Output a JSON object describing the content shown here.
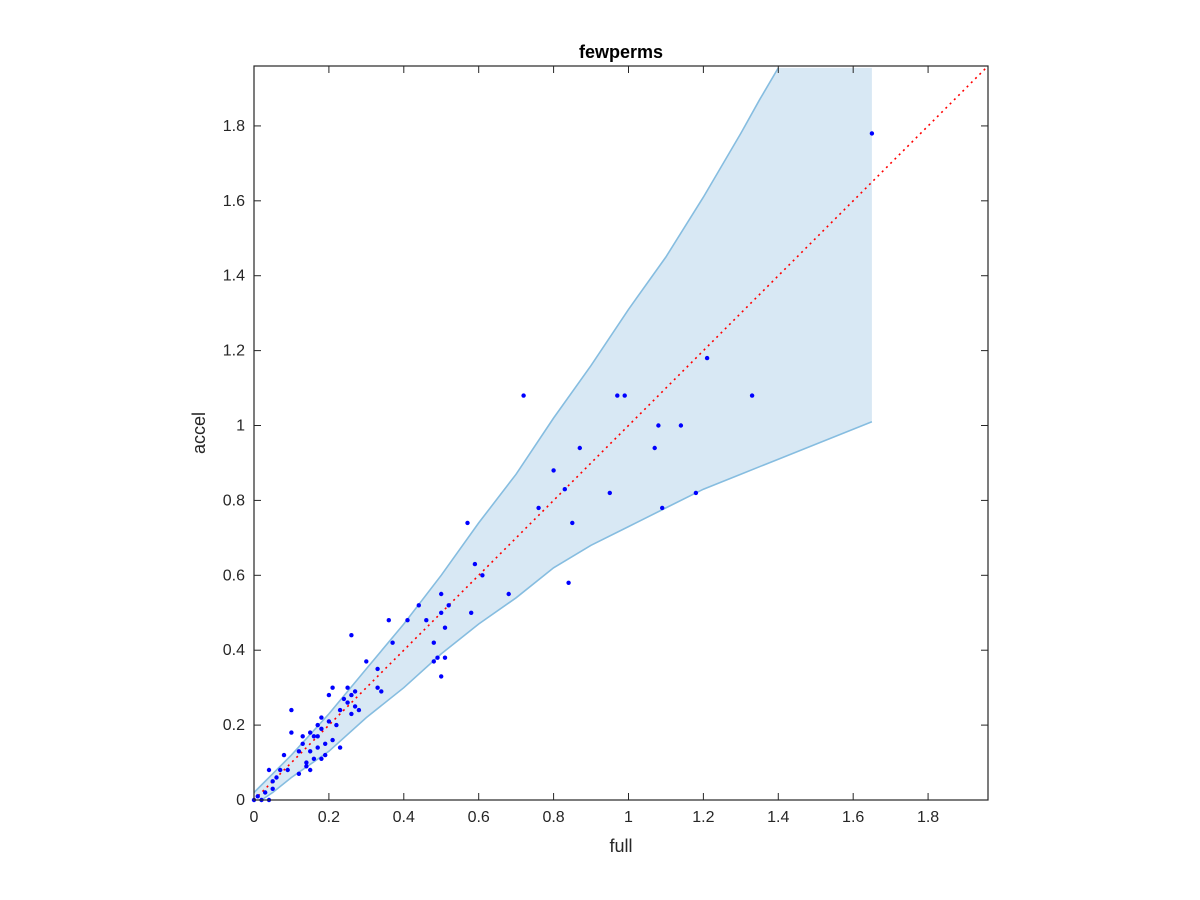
{
  "chart_data": {
    "type": "scatter",
    "title": "fewperms",
    "xlabel": "full",
    "ylabel": "accel",
    "xlim": [
      0,
      1.96
    ],
    "ylim": [
      0,
      1.96
    ],
    "xticks": [
      "0",
      "0.2",
      "0.4",
      "0.6",
      "0.8",
      "1",
      "1.2",
      "1.4",
      "1.6",
      "1.8"
    ],
    "yticks": [
      "0",
      "0.2",
      "0.4",
      "0.6",
      "0.8",
      "1",
      "1.2",
      "1.4",
      "1.6",
      "1.8"
    ],
    "grid": false,
    "colors": {
      "points": "#0000ff",
      "band_fill": "#d8e8f4",
      "band_edge": "#86bde0",
      "reference_line": "#ff0000",
      "axes": "#262626"
    },
    "reference_line": {
      "style": "dotted",
      "from": [
        0,
        0
      ],
      "to": [
        1.96,
        1.96
      ]
    },
    "band": {
      "upper": [
        [
          0,
          0.02
        ],
        [
          0.02,
          0.04
        ],
        [
          0.05,
          0.07
        ],
        [
          0.1,
          0.12
        ],
        [
          0.2,
          0.23
        ],
        [
          0.3,
          0.35
        ],
        [
          0.4,
          0.47
        ],
        [
          0.5,
          0.6
        ],
        [
          0.6,
          0.74
        ],
        [
          0.7,
          0.87
        ],
        [
          0.8,
          1.02
        ],
        [
          0.9,
          1.16
        ],
        [
          1.0,
          1.31
        ],
        [
          1.1,
          1.45
        ],
        [
          1.2,
          1.61
        ],
        [
          1.3,
          1.78
        ],
        [
          1.35,
          1.87
        ],
        [
          1.4,
          1.955
        ],
        [
          1.65,
          1.955
        ]
      ],
      "lower": [
        [
          0.02,
          0.0
        ],
        [
          0.05,
          0.02
        ],
        [
          0.1,
          0.06
        ],
        [
          0.2,
          0.13
        ],
        [
          0.3,
          0.22
        ],
        [
          0.4,
          0.3
        ],
        [
          0.5,
          0.39
        ],
        [
          0.6,
          0.47
        ],
        [
          0.7,
          0.54
        ],
        [
          0.8,
          0.62
        ],
        [
          0.9,
          0.68
        ],
        [
          1.0,
          0.73
        ],
        [
          1.1,
          0.78
        ],
        [
          1.2,
          0.83
        ],
        [
          1.3,
          0.87
        ],
        [
          1.4,
          0.91
        ],
        [
          1.5,
          0.95
        ],
        [
          1.65,
          1.01
        ]
      ]
    },
    "points": [
      [
        0.0,
        0.0
      ],
      [
        0.01,
        0.01
      ],
      [
        0.02,
        0.0
      ],
      [
        0.03,
        0.02
      ],
      [
        0.04,
        0.0
      ],
      [
        0.05,
        0.03
      ],
      [
        0.05,
        0.05
      ],
      [
        0.04,
        0.08
      ],
      [
        0.06,
        0.06
      ],
      [
        0.07,
        0.08
      ],
      [
        0.08,
        0.12
      ],
      [
        0.09,
        0.08
      ],
      [
        0.1,
        0.24
      ],
      [
        0.1,
        0.18
      ],
      [
        0.12,
        0.13
      ],
      [
        0.12,
        0.07
      ],
      [
        0.13,
        0.15
      ],
      [
        0.13,
        0.17
      ],
      [
        0.14,
        0.1
      ],
      [
        0.14,
        0.09
      ],
      [
        0.15,
        0.08
      ],
      [
        0.15,
        0.13
      ],
      [
        0.15,
        0.18
      ],
      [
        0.16,
        0.11
      ],
      [
        0.16,
        0.17
      ],
      [
        0.17,
        0.14
      ],
      [
        0.17,
        0.2
      ],
      [
        0.17,
        0.17
      ],
      [
        0.18,
        0.11
      ],
      [
        0.18,
        0.19
      ],
      [
        0.18,
        0.22
      ],
      [
        0.19,
        0.12
      ],
      [
        0.19,
        0.15
      ],
      [
        0.2,
        0.28
      ],
      [
        0.2,
        0.21
      ],
      [
        0.21,
        0.16
      ],
      [
        0.21,
        0.3
      ],
      [
        0.22,
        0.2
      ],
      [
        0.23,
        0.24
      ],
      [
        0.23,
        0.14
      ],
      [
        0.24,
        0.27
      ],
      [
        0.25,
        0.3
      ],
      [
        0.25,
        0.26
      ],
      [
        0.26,
        0.28
      ],
      [
        0.26,
        0.23
      ],
      [
        0.26,
        0.44
      ],
      [
        0.27,
        0.29
      ],
      [
        0.27,
        0.25
      ],
      [
        0.28,
        0.24
      ],
      [
        0.3,
        0.37
      ],
      [
        0.33,
        0.35
      ],
      [
        0.33,
        0.3
      ],
      [
        0.34,
        0.29
      ],
      [
        0.36,
        0.48
      ],
      [
        0.37,
        0.42
      ],
      [
        0.41,
        0.48
      ],
      [
        0.44,
        0.52
      ],
      [
        0.46,
        0.48
      ],
      [
        0.48,
        0.42
      ],
      [
        0.48,
        0.37
      ],
      [
        0.49,
        0.38
      ],
      [
        0.5,
        0.55
      ],
      [
        0.5,
        0.5
      ],
      [
        0.5,
        0.33
      ],
      [
        0.51,
        0.46
      ],
      [
        0.51,
        0.38
      ],
      [
        0.52,
        0.52
      ],
      [
        0.57,
        0.74
      ],
      [
        0.58,
        0.5
      ],
      [
        0.59,
        0.63
      ],
      [
        0.61,
        0.6
      ],
      [
        0.68,
        0.55
      ],
      [
        0.72,
        1.08
      ],
      [
        0.76,
        0.78
      ],
      [
        0.8,
        0.88
      ],
      [
        0.83,
        0.83
      ],
      [
        0.84,
        0.58
      ],
      [
        0.85,
        0.74
      ],
      [
        0.87,
        0.94
      ],
      [
        0.95,
        0.82
      ],
      [
        0.97,
        1.08
      ],
      [
        0.99,
        1.08
      ],
      [
        1.07,
        0.94
      ],
      [
        1.08,
        1.0
      ],
      [
        1.09,
        0.78
      ],
      [
        1.14,
        1.0
      ],
      [
        1.18,
        0.82
      ],
      [
        1.21,
        1.18
      ],
      [
        1.33,
        1.08
      ],
      [
        1.65,
        1.78
      ]
    ]
  }
}
